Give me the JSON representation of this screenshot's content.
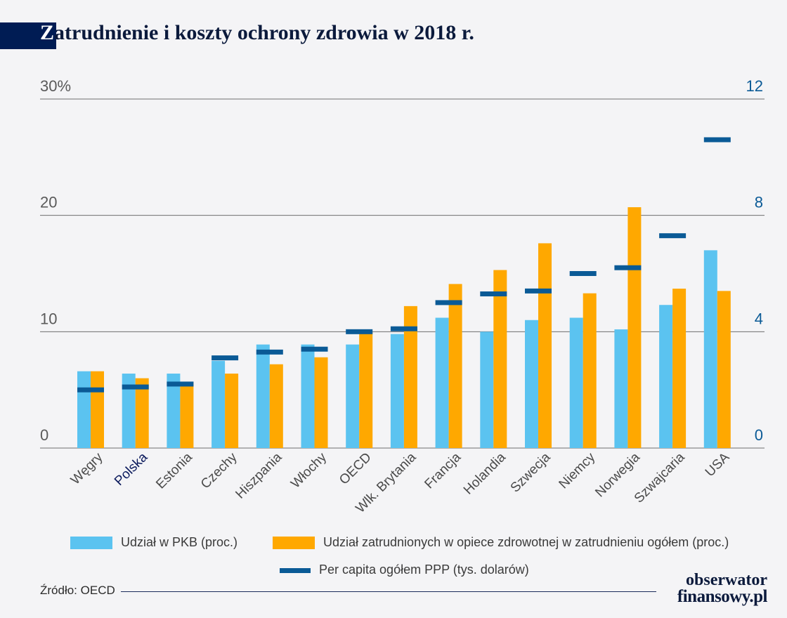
{
  "title": {
    "first_letter": "Z",
    "rest": "atrudnienie i koszty ochrony zdrowia w 2018 r."
  },
  "colors": {
    "pkb": "#5bc3f0",
    "employment": "#ffa800",
    "per_capita": "#0a5a96",
    "highlight": "#0b1a5c"
  },
  "chart_data": {
    "type": "bar",
    "categories": [
      "Węgry",
      "Polska",
      "Estonia",
      "Czechy",
      "Hiszpania",
      "Włochy",
      "OECD",
      "Wlk. Brytania",
      "Francja",
      "Holandia",
      "Szwecja",
      "Niemcy",
      "Norwegia",
      "Szwajcaria",
      "USA"
    ],
    "highlight_category": "Polska",
    "series": [
      {
        "name": "Udział w PKB (proc.)",
        "type": "bar",
        "axis": "left",
        "values": [
          6.6,
          6.4,
          6.4,
          7.5,
          8.9,
          8.9,
          8.9,
          9.8,
          11.2,
          10.0,
          11.0,
          11.2,
          10.2,
          12.3,
          17.0
        ]
      },
      {
        "name": "Udział zatrudnionych w opiece zdrowotnej w zatrudnieniu ogółem (proc.)",
        "type": "bar",
        "axis": "left",
        "values": [
          6.6,
          6.0,
          5.7,
          6.4,
          7.2,
          7.8,
          10.0,
          12.2,
          14.1,
          15.3,
          17.6,
          13.3,
          20.7,
          13.7,
          13.5
        ]
      },
      {
        "name": "Per capita ogółem PPP (tys. dolarów)",
        "type": "marker",
        "axis": "right",
        "values": [
          2.0,
          2.1,
          2.2,
          3.1,
          3.3,
          3.4,
          4.0,
          4.1,
          5.0,
          5.3,
          5.4,
          6.0,
          6.2,
          7.3,
          10.6
        ]
      }
    ],
    "y_left": {
      "min": 0,
      "max": 30,
      "ticks": [
        "0",
        "10",
        "20",
        "30%"
      ]
    },
    "y_right": {
      "min": 0,
      "max": 12,
      "ticks": [
        "0",
        "4",
        "8",
        "12"
      ]
    }
  },
  "source": "Źródło: OECD",
  "logo": {
    "line1": "obserwator",
    "line2": "finansowy.pl"
  }
}
